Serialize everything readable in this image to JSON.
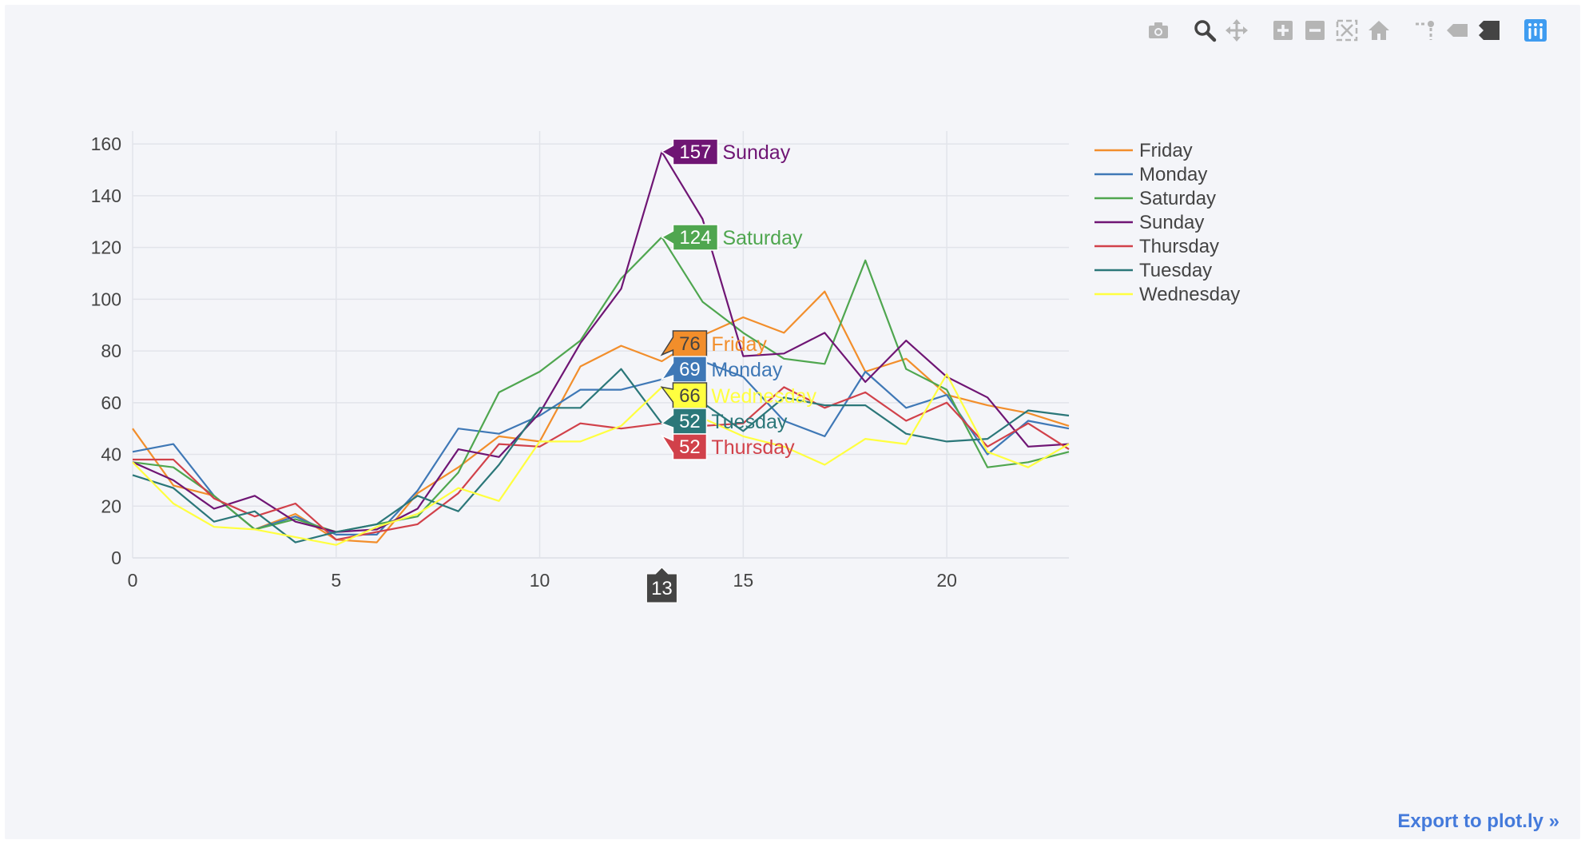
{
  "modebar": {
    "buttons": [
      {
        "name": "camera-icon",
        "group": 0
      },
      {
        "name": "zoom-icon",
        "group": 1
      },
      {
        "name": "pan-icon",
        "group": 1
      },
      {
        "name": "zoom-in-icon",
        "group": 2
      },
      {
        "name": "zoom-out-icon",
        "group": 2
      },
      {
        "name": "autoscale-icon",
        "group": 2
      },
      {
        "name": "home-icon",
        "group": 2
      },
      {
        "name": "spike-lines-icon",
        "group": 3
      },
      {
        "name": "hover-closest-icon",
        "group": 3
      },
      {
        "name": "hover-compare-icon",
        "group": 3
      },
      {
        "name": "plotly-logo-icon",
        "group": 4
      }
    ],
    "icon_color": "#b5b5b5",
    "active_color": "#444444",
    "logo_color": "#3f9cf0"
  },
  "export_link": "Export to plot.ly »",
  "chart_data": {
    "type": "line",
    "x": [
      0,
      1,
      2,
      3,
      4,
      5,
      6,
      7,
      8,
      9,
      10,
      11,
      12,
      13,
      14,
      15,
      16,
      17,
      18,
      19,
      20,
      21,
      22,
      23
    ],
    "xlim": [
      0,
      23
    ],
    "ylim": [
      0,
      165
    ],
    "xticks": [
      0,
      5,
      10,
      15,
      20
    ],
    "yticks": [
      0,
      20,
      40,
      60,
      80,
      100,
      120,
      140,
      160
    ],
    "grid": true,
    "legend_position": "top-right",
    "series": [
      {
        "name": "Friday",
        "color": "#f28e2b",
        "values": [
          50,
          28,
          24,
          11,
          17,
          7,
          6,
          25,
          35,
          47,
          45,
          74,
          82,
          76,
          86,
          93,
          87,
          103,
          72,
          77,
          63,
          59,
          56,
          51
        ]
      },
      {
        "name": "Monday",
        "color": "#3f78b6",
        "values": [
          41,
          44,
          24,
          11,
          16,
          9,
          9,
          26,
          50,
          48,
          55,
          65,
          65,
          69,
          76,
          70,
          53,
          47,
          72,
          58,
          63,
          40,
          53,
          50
        ]
      },
      {
        "name": "Saturday",
        "color": "#4fa64f",
        "values": [
          37,
          35,
          24,
          11,
          15,
          10,
          13,
          16,
          33,
          64,
          72,
          84,
          108,
          124,
          99,
          87,
          77,
          75,
          115,
          73,
          65,
          35,
          37,
          41
        ]
      },
      {
        "name": "Sunday",
        "color": "#6f1574",
        "values": [
          37,
          30,
          19,
          24,
          14,
          10,
          11,
          19,
          42,
          39,
          56,
          83,
          104,
          157,
          131,
          78,
          79,
          87,
          68,
          84,
          70,
          62,
          43,
          44
        ]
      },
      {
        "name": "Thursday",
        "color": "#d1414a",
        "values": [
          38,
          38,
          23,
          16,
          21,
          7,
          10,
          13,
          25,
          44,
          43,
          52,
          50,
          52,
          51,
          52,
          66,
          58,
          64,
          53,
          60,
          43,
          52,
          42
        ]
      },
      {
        "name": "Tuesday",
        "color": "#2b7779",
        "values": [
          32,
          27,
          14,
          18,
          6,
          10,
          13,
          24,
          18,
          36,
          58,
          58,
          73,
          52,
          60,
          49,
          62,
          59,
          59,
          48,
          45,
          46,
          57,
          55
        ]
      },
      {
        "name": "Wednesday",
        "color": "#ffff40",
        "values": [
          37,
          21,
          12,
          11,
          8,
          5,
          12,
          17,
          27,
          22,
          45,
          45,
          51,
          66,
          54,
          47,
          43,
          36,
          46,
          44,
          71,
          41,
          35,
          44
        ]
      }
    ],
    "hover": {
      "x": 13,
      "x_label": "13",
      "items": [
        {
          "series": "Sunday",
          "value": "157",
          "name": "Sunday"
        },
        {
          "series": "Saturday",
          "value": "124",
          "name": "Saturday"
        },
        {
          "series": "Friday",
          "value": "76",
          "name": "Friday"
        },
        {
          "series": "Monday",
          "value": "69",
          "name": "Monday"
        },
        {
          "series": "Wednesday",
          "value": "66",
          "name": "Wednesday"
        },
        {
          "series": "Tuesday",
          "value": "52",
          "name": "Tuesday"
        },
        {
          "series": "Thursday",
          "value": "52",
          "name": "Thursday"
        }
      ]
    }
  }
}
